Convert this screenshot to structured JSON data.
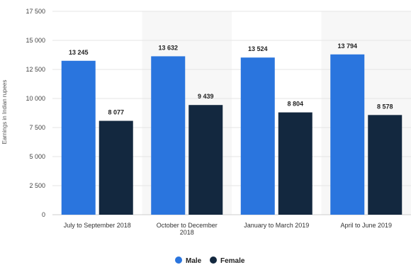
{
  "chart_data": {
    "type": "bar",
    "categories": [
      "July to September 2018",
      "October to December 2018",
      "January to March 2019",
      "April to June 2019"
    ],
    "series": [
      {
        "name": "Male",
        "values": [
          13245,
          13632,
          13524,
          13794
        ],
        "color": "#2a75de"
      },
      {
        "name": "Female",
        "values": [
          8077,
          9439,
          8804,
          8578
        ],
        "color": "#13283f"
      }
    ],
    "data_labels": [
      [
        "13 245",
        "13 632",
        "13 524",
        "13 794"
      ],
      [
        "8 077",
        "9 439",
        "8 804",
        "8 578"
      ]
    ],
    "ylabel": "Earnings in Indian rupees",
    "xlabel": "",
    "ylim": [
      0,
      17500
    ],
    "yticks": [
      0,
      2500,
      5000,
      7500,
      10000,
      12500,
      15000,
      17500
    ],
    "ytick_labels": [
      "0",
      "2 500",
      "5 000",
      "7 500",
      "10 000",
      "12 500",
      "15 000",
      "17 500"
    ],
    "grid": true,
    "legend_position": "bottom-center",
    "alternate_band_color": "#f7f7f7"
  }
}
